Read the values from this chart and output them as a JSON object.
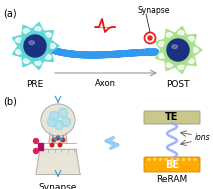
{
  "bg_color": "#ffffff",
  "label_a": "(a)",
  "label_b": "(b)",
  "label_pre": "PRE",
  "label_post": "POST",
  "label_axon": "Axon",
  "label_synapse_a": "Synapse",
  "label_synapse_b": "Synapse",
  "label_reram": "ReRAM",
  "label_te": "TE",
  "label_be": "BE",
  "label_ions": "ions",
  "neuron_color": "#5dd6d6",
  "neuron_core": "#1a3080",
  "post_dendrite_color": "#a8e08a",
  "axon_color": "#3399ee",
  "synapse_circle_color": "#ee2222",
  "spike_color": "#ee1111",
  "arrow_color": "#999999",
  "te_color": "#c8c88a",
  "be_color": "#ffaa00",
  "filament_color": "#99aaff",
  "synapse_fill": "#e8e4d8",
  "synapse_border": "#aaaaaa",
  "vesicle_color": "#99ddee",
  "double_arrow_color": "#99ccee",
  "ion_arrow_color": "#555555"
}
